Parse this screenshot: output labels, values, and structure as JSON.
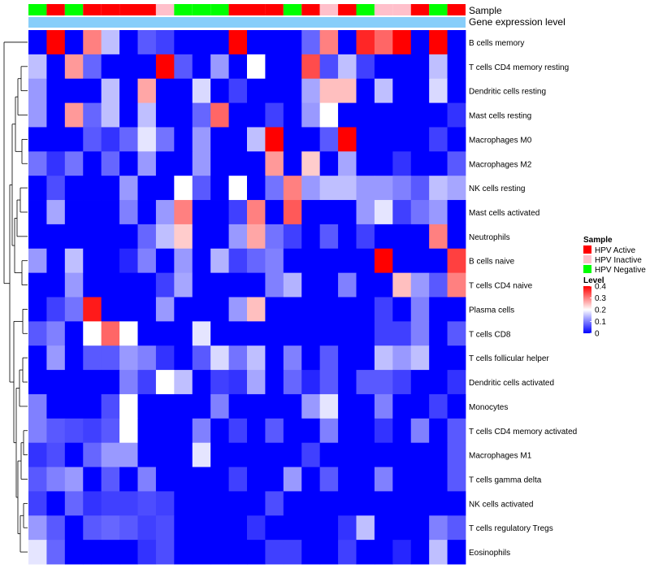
{
  "chart_data": {
    "type": "heatmap",
    "title": "",
    "annotation_rows": [
      {
        "label": "Sample"
      },
      {
        "label": "Gene expression level"
      }
    ],
    "samples": [
      "HPV Negative",
      "HPV Active",
      "HPV Negative",
      "HPV Active",
      "HPV Active",
      "HPV Active",
      "HPV Active",
      "HPV Inactive",
      "HPV Negative",
      "HPV Negative",
      "HPV Negative",
      "HPV Active",
      "HPV Active",
      "HPV Active",
      "HPV Negative",
      "HPV Active",
      "HPV Inactive",
      "HPV Active",
      "HPV Negative",
      "HPV Inactive",
      "HPV Inactive",
      "HPV Active",
      "HPV Negative",
      "HPV Active"
    ],
    "rows": [
      "B cells memory",
      "T cells CD4 memory resting",
      "Dendritic cells resting",
      "Mast cells resting",
      "Macrophages M0",
      "Macrophages M2",
      "NK cells resting",
      "Mast cells activated",
      "Neutrophils",
      "B cells naive",
      "T cells CD4 naive",
      "Plasma cells",
      "T cells CD8",
      "T cells follicular helper",
      "Dendritic cells activated",
      "Monocytes",
      "T cells CD4 memory activated",
      "Macrophages M1",
      "T cells gamma delta",
      "NK cells activated",
      "T cells regulatory  Tregs",
      "Eosinophils"
    ],
    "values": [
      [
        0,
        0.4,
        0,
        0.3,
        0.15,
        0,
        0.07,
        0.05,
        0,
        0,
        0,
        0.4,
        0,
        0,
        0,
        0.08,
        0.3,
        0,
        0.37,
        0.32,
        0.4,
        0,
        0.4,
        0
      ],
      [
        0.15,
        0,
        0.28,
        0.08,
        0,
        0,
        0,
        0.4,
        0.07,
        0,
        0.12,
        0,
        0.2,
        0,
        0,
        0.34,
        0.06,
        0.15,
        0.05,
        0,
        0,
        0,
        0.15,
        0
      ],
      [
        0.12,
        0,
        0,
        0,
        0.15,
        0,
        0.27,
        0,
        0,
        0.17,
        0,
        0.05,
        0,
        0,
        0,
        0.13,
        0.25,
        0.25,
        0,
        0.15,
        0,
        0,
        0.17,
        0
      ],
      [
        0.12,
        0,
        0.28,
        0.08,
        0.15,
        0,
        0.15,
        0,
        0,
        0.08,
        0.32,
        0,
        0,
        0.05,
        0,
        0.12,
        0.2,
        0,
        0,
        0,
        0,
        0,
        0,
        0.04
      ],
      [
        0,
        0,
        0,
        0.07,
        0.04,
        0.08,
        0.18,
        0.09,
        0,
        0.12,
        0,
        0,
        0.15,
        0.4,
        0,
        0,
        0.07,
        0.4,
        0,
        0,
        0,
        0,
        0.05,
        0
      ],
      [
        0.09,
        0.04,
        0.09,
        0,
        0.08,
        0,
        0.12,
        0,
        0,
        0.12,
        0,
        0,
        0,
        0.28,
        0,
        0.24,
        0,
        0.13,
        0,
        0,
        0.04,
        0,
        0,
        0.07
      ],
      [
        0,
        0.06,
        0,
        0,
        0,
        0.12,
        0,
        0,
        0.2,
        0.07,
        0,
        0.2,
        0,
        0.09,
        0.3,
        0.12,
        0.15,
        0.15,
        0.12,
        0.12,
        0.1,
        0.07,
        0.15,
        0.13
      ],
      [
        0,
        0.13,
        0,
        0,
        0,
        0.1,
        0,
        0.12,
        0.3,
        0,
        0,
        0.05,
        0.3,
        0,
        0.33,
        0,
        0,
        0,
        0.12,
        0.18,
        0.05,
        0.09,
        0.12,
        0
      ],
      [
        0,
        0,
        0,
        0,
        0,
        0,
        0.08,
        0.15,
        0.24,
        0,
        0,
        0.12,
        0.27,
        0.09,
        0.05,
        0,
        0.07,
        0,
        0.05,
        0,
        0,
        0,
        0.3,
        0
      ],
      [
        0.12,
        0,
        0.15,
        0,
        0,
        0.03,
        0.1,
        0,
        0.12,
        0,
        0.14,
        0.05,
        0.08,
        0.1,
        0,
        0,
        0,
        0,
        0,
        0.4,
        0,
        0,
        0,
        0.35
      ],
      [
        0,
        0,
        0.12,
        0,
        0,
        0,
        0,
        0.05,
        0.13,
        0,
        0,
        0,
        0,
        0.1,
        0.14,
        0,
        0,
        0.1,
        0,
        0,
        0.25,
        0.12,
        0.07,
        0.3
      ],
      [
        0,
        0.05,
        0.09,
        0.38,
        0,
        0,
        0,
        0.12,
        0,
        0,
        0,
        0.12,
        0.25,
        0,
        0,
        0,
        0,
        0,
        0,
        0.05,
        0,
        0.1,
        0,
        0
      ],
      [
        0.07,
        0.1,
        0,
        0.2,
        0.32,
        0.2,
        0,
        0,
        0,
        0.18,
        0,
        0,
        0,
        0,
        0,
        0,
        0,
        0,
        0,
        0.05,
        0.05,
        0.1,
        0,
        0.07
      ],
      [
        0,
        0.12,
        0,
        0.07,
        0.07,
        0.12,
        0.1,
        0.04,
        0,
        0.07,
        0.17,
        0.09,
        0.15,
        0,
        0.1,
        0,
        0.07,
        0,
        0,
        0.15,
        0.12,
        0.15,
        0,
        0
      ],
      [
        0,
        0,
        0,
        0,
        0,
        0.1,
        0.05,
        0.2,
        0.15,
        0,
        0.05,
        0.04,
        0.13,
        0,
        0.08,
        0.03,
        0.07,
        0,
        0.07,
        0.07,
        0.05,
        0,
        0,
        0.04
      ],
      [
        0.1,
        0,
        0,
        0,
        0.06,
        0.2,
        0,
        0,
        0,
        0,
        0.1,
        0,
        0,
        0,
        0,
        0.12,
        0.18,
        0,
        0,
        0.1,
        0,
        0,
        0.05,
        0
      ],
      [
        0.1,
        0.07,
        0.06,
        0.05,
        0.07,
        0.2,
        0,
        0,
        0,
        0.1,
        0,
        0.05,
        0,
        0.07,
        0,
        0,
        0.1,
        0,
        0,
        0.04,
        0,
        0.1,
        0,
        0.07
      ],
      [
        0.04,
        0.06,
        0,
        0.08,
        0.12,
        0.12,
        0,
        0,
        0,
        0.18,
        0,
        0,
        0,
        0,
        0,
        0.05,
        0,
        0,
        0,
        0,
        0,
        0,
        0,
        0.07
      ],
      [
        0.07,
        0.1,
        0.12,
        0,
        0.07,
        0,
        0.1,
        0,
        0,
        0,
        0,
        0.05,
        0,
        0,
        0.12,
        0,
        0.07,
        0,
        0,
        0.1,
        0,
        0,
        0,
        0.07
      ],
      [
        0.05,
        0,
        0.08,
        0.04,
        0.05,
        0.05,
        0.06,
        0.05,
        0,
        0,
        0,
        0,
        0,
        0.06,
        0,
        0,
        0,
        0,
        0,
        0,
        0,
        0,
        0,
        0
      ],
      [
        0.12,
        0.07,
        0,
        0.07,
        0.08,
        0.07,
        0.05,
        0.06,
        0,
        0,
        0,
        0,
        0.04,
        0,
        0,
        0,
        0,
        0.04,
        0.15,
        0,
        0,
        0,
        0.1,
        0.07
      ],
      [
        0.18,
        0.08,
        0,
        0,
        0,
        0,
        0.04,
        0.06,
        0,
        0,
        0,
        0,
        0,
        0.05,
        0.05,
        0,
        0,
        0.05,
        0,
        0,
        0.03,
        0,
        0.15,
        0
      ]
    ],
    "color_scale": {
      "min": 0,
      "max": 0.4,
      "low_color": "#0000ff",
      "mid_color": "#ffffff",
      "high_color": "#ff0000",
      "mid_value": 0.2
    },
    "gene_expression_color": "#87cefa",
    "legends": {
      "sample": {
        "title": "Sample",
        "entries": [
          {
            "label": "HPV Active",
            "color": "#ff0000"
          },
          {
            "label": "HPV Inactive",
            "color": "#ffc0cb"
          },
          {
            "label": "HPV Negative",
            "color": "#00ff00"
          }
        ]
      },
      "level": {
        "title": "Level",
        "ticks": [
          0.4,
          0.3,
          0.2,
          0.1,
          0
        ]
      }
    }
  }
}
